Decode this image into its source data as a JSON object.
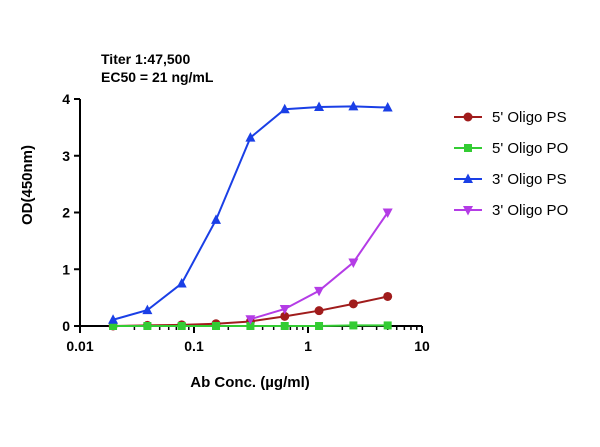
{
  "chart_data": {
    "type": "line",
    "annotations": [
      "Titer 1:47,500",
      "EC50 = 21 ng/mL"
    ],
    "xlabel": "Ab Conc. (µg/ml)",
    "ylabel": "OD(450nm)",
    "xscale": "log",
    "xlim": [
      0.01,
      10
    ],
    "ylim": [
      0,
      4
    ],
    "x_ticks": [
      0.01,
      0.1,
      1,
      10
    ],
    "x_tick_labels": [
      "0.01",
      "0.1",
      "1",
      "10"
    ],
    "y_ticks": [
      0,
      1,
      2,
      3,
      4
    ],
    "y_tick_labels": [
      "0",
      "1",
      "2",
      "3",
      "4"
    ],
    "grid": false,
    "legend_position": "right",
    "series": [
      {
        "name": "5' Oligo PS",
        "color": "#a01c1c",
        "marker": "circle",
        "x": [
          0.0195,
          0.039,
          0.078,
          0.156,
          0.3125,
          0.625,
          1.25,
          2.5,
          5
        ],
        "y": [
          0.0,
          0.01,
          0.02,
          0.04,
          0.08,
          0.17,
          0.27,
          0.39,
          0.52
        ]
      },
      {
        "name": "5' Oligo PO",
        "color": "#33cc33",
        "marker": "square",
        "x": [
          0.0195,
          0.039,
          0.078,
          0.156,
          0.3125,
          0.625,
          1.25,
          2.5,
          5
        ],
        "y": [
          0.0,
          0.0,
          0.0,
          0.0,
          0.0,
          0.0,
          0.0,
          0.01,
          0.01
        ]
      },
      {
        "name": "3' Oligo PS",
        "color": "#1a3fe6",
        "marker": "triangle-up",
        "x": [
          0.0195,
          0.039,
          0.078,
          0.156,
          0.3125,
          0.625,
          1.25,
          2.5,
          5
        ],
        "y": [
          0.11,
          0.28,
          0.75,
          1.87,
          3.32,
          3.82,
          3.86,
          3.87,
          3.85
        ]
      },
      {
        "name": "3' Oligo PO",
        "color": "#b43ce6",
        "marker": "triangle-down",
        "x": [
          0.3125,
          0.625,
          1.25,
          2.5,
          5
        ],
        "y": [
          0.12,
          0.3,
          0.62,
          1.12,
          2.0
        ]
      }
    ]
  }
}
